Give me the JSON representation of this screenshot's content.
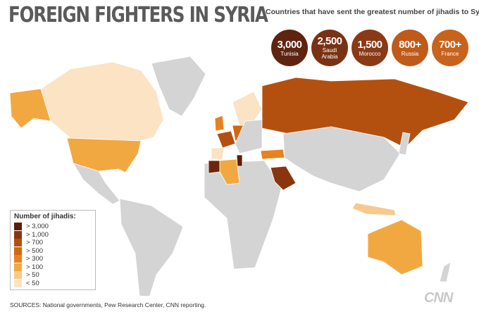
{
  "title": "FOREIGN FIGHTERS IN SYRIA",
  "subtitle": "Countries that have sent the greatest number of jihadis to Syria",
  "top_countries": [
    {
      "value": "3,000",
      "name": "Tunisia",
      "color": "#5e2410"
    },
    {
      "value": "2,500",
      "name": "Saudi Arabia",
      "color": "#7a3214"
    },
    {
      "value": "1,500",
      "name": "Morocco",
      "color": "#8a3a16"
    },
    {
      "value": "800+",
      "name": "Russia",
      "color": "#bf5a1a"
    },
    {
      "value": "700+",
      "name": "France",
      "color": "#c8621c"
    }
  ],
  "legend": {
    "title": "Number of jihadis:",
    "items": [
      {
        "label": "> 3,000",
        "color": "#5a1f0a"
      },
      {
        "label": "> 1,000",
        "color": "#8a3510"
      },
      {
        "label": "> 700",
        "color": "#b4500f"
      },
      {
        "label": "> 500",
        "color": "#d0680f"
      },
      {
        "label": "> 300",
        "color": "#e8821e"
      },
      {
        "label": "> 100",
        "color": "#f2a840"
      },
      {
        "label": "> 50",
        "color": "#f7c98c"
      },
      {
        "label": "< 50",
        "color": "#fbe3c4"
      }
    ]
  },
  "sources": "SOURCES:  National governments, Pew Research Center, CNN reporting.",
  "logo": "CNN"
}
